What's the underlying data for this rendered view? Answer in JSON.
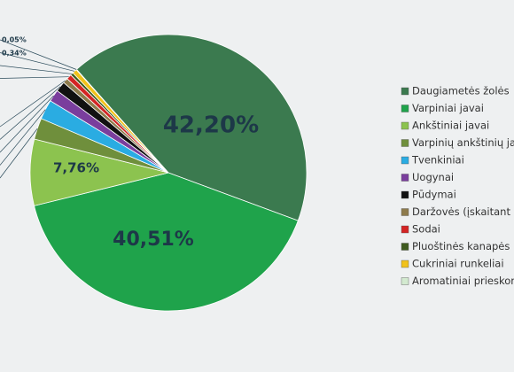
{
  "chart_data": {
    "type": "pie",
    "categories": [
      "Daugiametės žolės",
      "Varpiniai javai",
      "Ankštiniai javai",
      "Varpinių ankštinių javų",
      "Tvenkiniai",
      "Uogynai",
      "Pūdymai",
      "Daržovės (įskaitant bulv",
      "Sodai",
      "Pluoštinės kanapės",
      "Cukriniai runkeliai",
      "Aromatiniai prieskonini"
    ],
    "values": [
      42.2,
      40.51,
      7.76,
      2.5,
      2.3,
      1.4,
      1.2,
      0.6,
      0.6,
      0.34,
      0.54,
      0.05
    ],
    "value_labels": [
      "42,20%",
      "40,51%",
      "7,76%",
      null,
      null,
      null,
      null,
      null,
      null,
      "0,34%",
      null,
      "0,05%"
    ],
    "colors": [
      "#3b7a4f",
      "#1fa34b",
      "#8cc34f",
      "#6f8f3c",
      "#2aace2",
      "#7a3e9d",
      "#111111",
      "#8e7b4c",
      "#d42424",
      "#3f5b1f",
      "#f1c21b",
      "#d3ead0"
    ]
  }
}
